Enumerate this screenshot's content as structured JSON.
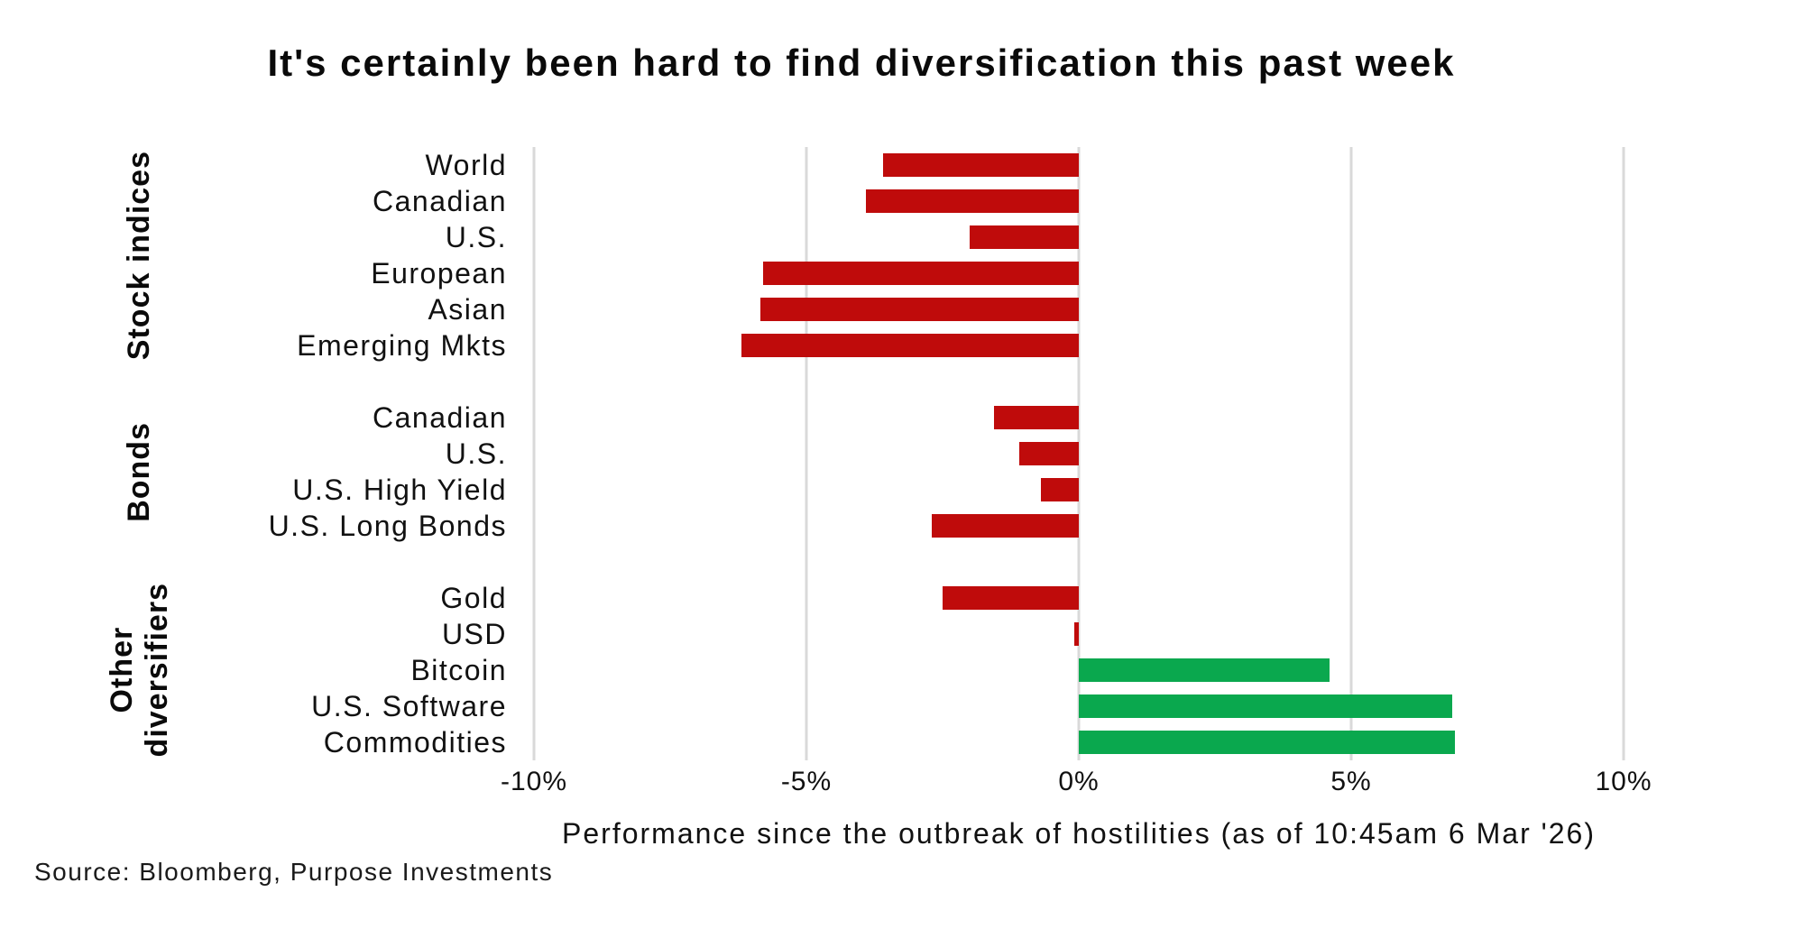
{
  "title": "It's certainly been hard to find diversification this past week",
  "source": "Source: Bloomberg, Purpose Investments",
  "chart_data": {
    "type": "bar",
    "orientation": "horizontal",
    "title": "It's certainly been hard to find diversification this past week",
    "xlabel": "Performance since the outbreak of hostilities (as of 10:45am 6 Mar '26)",
    "xlim": [
      -10,
      10
    ],
    "grid": true,
    "unit": "%",
    "x_ticks": [
      {
        "label": "-10%",
        "value": -10
      },
      {
        "label": "-5%",
        "value": -5
      },
      {
        "label": "0%",
        "value": 0
      },
      {
        "label": "5%",
        "value": 5
      },
      {
        "label": "10%",
        "value": 10
      }
    ],
    "colors": {
      "negative": "#bf0b0b",
      "positive": "#0aa84e",
      "gridline": "#d9d9d9"
    },
    "groups": [
      {
        "label": "Stock indices",
        "label_lines": [
          "Stock indices"
        ],
        "rows": [
          {
            "label": "World",
            "value": -3.6
          },
          {
            "label": "Canadian",
            "value": -3.9
          },
          {
            "label": "U.S.",
            "value": -2.0
          },
          {
            "label": "European",
            "value": -5.8
          },
          {
            "label": "Asian",
            "value": -5.85
          },
          {
            "label": "Emerging Mkts",
            "value": -6.2
          }
        ]
      },
      {
        "label": "Bonds",
        "label_lines": [
          "Bonds"
        ],
        "rows": [
          {
            "label": "Canadian",
            "value": -1.55
          },
          {
            "label": "U.S.",
            "value": -1.1
          },
          {
            "label": "U.S. High Yield",
            "value": -0.7
          },
          {
            "label": "U.S. Long Bonds",
            "value": -2.7
          }
        ]
      },
      {
        "label": "Other diversifiers",
        "label_lines": [
          "Other",
          "diversifiers"
        ],
        "rows": [
          {
            "label": "Gold",
            "value": -2.5
          },
          {
            "label": "USD",
            "value": -0.08
          },
          {
            "label": "Bitcoin",
            "value": 4.6
          },
          {
            "label": "U.S. Software",
            "value": 6.85
          },
          {
            "label": "Commodities",
            "value": 6.9
          }
        ]
      }
    ]
  }
}
